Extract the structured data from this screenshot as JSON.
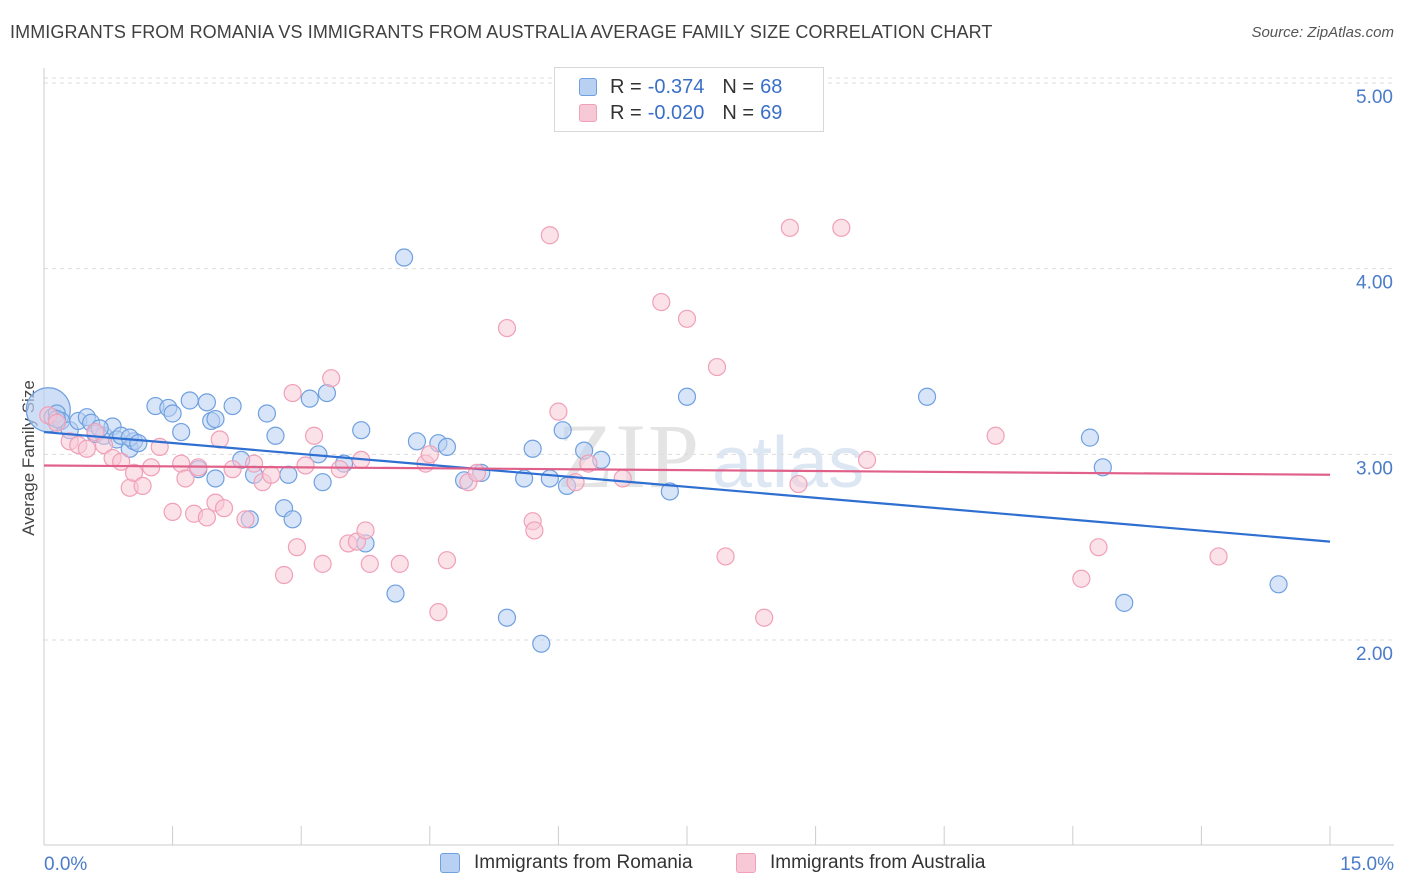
{
  "title": "IMMIGRANTS FROM ROMANIA VS IMMIGRANTS FROM AUSTRALIA AVERAGE FAMILY SIZE CORRELATION CHART",
  "source": "Source: ZipAtlas.com",
  "watermark": {
    "zip": "ZIP",
    "atlas": "atlas"
  },
  "legend": {
    "r_label": "R =",
    "n_label": "N =",
    "rows": [
      {
        "r": "-0.374",
        "n": "68",
        "color": "#6fa0e0"
      },
      {
        "r": "-0.020",
        "n": "69",
        "color": "#f0a0b8"
      }
    ]
  },
  "chart_data": {
    "type": "scatter",
    "xlabel": "",
    "ylabel": "Average Family Size",
    "xlim": [
      0,
      15
    ],
    "ylim": [
      1.0,
      5.1
    ],
    "x_tick_labels": [
      {
        "x": 0,
        "label": "0.0%"
      },
      {
        "x": 15,
        "label": "15.0%"
      }
    ],
    "y_ticks": [
      {
        "y": 5,
        "label": "5.00"
      },
      {
        "y": 4,
        "label": "4.00"
      },
      {
        "y": 3,
        "label": "3.00"
      },
      {
        "y": 2,
        "label": "2.00"
      }
    ],
    "grid": "horizontal dashed",
    "legend_position": "bottom",
    "series": [
      {
        "name": "Immigrants from Romania",
        "color": "#6fa0e0",
        "fill": "#b8d0f2",
        "line_color": "#2e6fd1",
        "trend": [
          [
            0,
            3.12
          ],
          [
            15,
            2.53
          ]
        ],
        "points": [
          [
            0.05,
            3.24
          ],
          [
            0.1,
            3.2
          ],
          [
            0.15,
            3.22
          ],
          [
            0.2,
            3.18
          ],
          [
            0.3,
            3.13
          ],
          [
            0.4,
            3.18
          ],
          [
            0.5,
            3.2
          ],
          [
            0.55,
            3.17
          ],
          [
            0.6,
            3.11
          ],
          [
            0.7,
            3.1
          ],
          [
            0.8,
            3.15
          ],
          [
            0.85,
            3.08
          ],
          [
            0.9,
            3.1
          ],
          [
            1.0,
            3.03
          ],
          [
            1.05,
            3.07
          ],
          [
            1.0,
            3.09
          ],
          [
            1.1,
            3.06
          ],
          [
            1.3,
            3.26
          ],
          [
            1.45,
            3.25
          ],
          [
            1.5,
            3.22
          ],
          [
            1.6,
            3.12
          ],
          [
            1.7,
            3.29
          ],
          [
            1.8,
            2.92
          ],
          [
            1.9,
            3.28
          ],
          [
            1.95,
            3.18
          ],
          [
            2.0,
            3.19
          ],
          [
            2.0,
            2.87
          ],
          [
            2.2,
            3.26
          ],
          [
            2.3,
            2.97
          ],
          [
            2.4,
            2.65
          ],
          [
            2.45,
            2.89
          ],
          [
            2.6,
            3.22
          ],
          [
            2.7,
            3.1
          ],
          [
            2.8,
            2.71
          ],
          [
            2.85,
            2.89
          ],
          [
            2.9,
            2.65
          ],
          [
            3.1,
            3.3
          ],
          [
            3.2,
            3.0
          ],
          [
            3.25,
            2.85
          ],
          [
            3.3,
            3.33
          ],
          [
            3.5,
            2.95
          ],
          [
            3.7,
            3.13
          ],
          [
            3.75,
            2.52
          ],
          [
            4.1,
            2.25
          ],
          [
            4.2,
            4.06
          ],
          [
            4.35,
            3.07
          ],
          [
            4.6,
            3.06
          ],
          [
            4.7,
            3.04
          ],
          [
            4.9,
            2.86
          ],
          [
            5.1,
            2.9
          ],
          [
            5.4,
            2.12
          ],
          [
            5.6,
            2.87
          ],
          [
            5.7,
            3.03
          ],
          [
            5.8,
            1.98
          ],
          [
            5.9,
            2.87
          ],
          [
            6.05,
            3.13
          ],
          [
            6.1,
            2.83
          ],
          [
            6.3,
            3.02
          ],
          [
            6.5,
            2.97
          ],
          [
            7.3,
            2.8
          ],
          [
            7.5,
            3.31
          ],
          [
            10.3,
            3.31
          ],
          [
            12.2,
            3.09
          ],
          [
            12.35,
            2.93
          ],
          [
            12.6,
            2.2
          ],
          [
            14.4,
            2.3
          ],
          [
            0.15,
            3.19
          ],
          [
            0.65,
            3.14
          ]
        ]
      },
      {
        "name": "Immigrants from Australia",
        "color": "#f0a0b8",
        "fill": "#f7c8d6",
        "line_color": "#e0608a",
        "trend": [
          [
            0,
            2.94
          ],
          [
            15,
            2.89
          ]
        ],
        "points": [
          [
            0.05,
            3.21
          ],
          [
            0.15,
            3.17
          ],
          [
            0.3,
            3.07
          ],
          [
            0.4,
            3.05
          ],
          [
            0.5,
            3.03
          ],
          [
            0.6,
            3.12
          ],
          [
            0.7,
            3.05
          ],
          [
            0.8,
            2.98
          ],
          [
            0.9,
            2.96
          ],
          [
            1.0,
            2.82
          ],
          [
            1.05,
            2.9
          ],
          [
            1.15,
            2.83
          ],
          [
            1.25,
            2.93
          ],
          [
            1.35,
            3.04
          ],
          [
            1.5,
            2.69
          ],
          [
            1.6,
            2.95
          ],
          [
            1.65,
            2.87
          ],
          [
            1.75,
            2.68
          ],
          [
            1.8,
            2.93
          ],
          [
            1.9,
            2.66
          ],
          [
            2.0,
            2.74
          ],
          [
            2.05,
            3.08
          ],
          [
            2.1,
            2.71
          ],
          [
            2.2,
            2.92
          ],
          [
            2.35,
            2.65
          ],
          [
            2.45,
            2.95
          ],
          [
            2.55,
            2.85
          ],
          [
            2.65,
            2.89
          ],
          [
            2.8,
            2.35
          ],
          [
            2.9,
            3.33
          ],
          [
            2.95,
            2.5
          ],
          [
            3.05,
            2.94
          ],
          [
            3.15,
            3.1
          ],
          [
            3.25,
            2.41
          ],
          [
            3.35,
            3.41
          ],
          [
            3.45,
            2.92
          ],
          [
            3.55,
            2.52
          ],
          [
            3.65,
            2.53
          ],
          [
            3.7,
            2.97
          ],
          [
            3.75,
            2.59
          ],
          [
            3.8,
            2.41
          ],
          [
            4.15,
            2.41
          ],
          [
            4.45,
            2.95
          ],
          [
            4.5,
            3.0
          ],
          [
            4.6,
            2.15
          ],
          [
            4.7,
            2.43
          ],
          [
            4.95,
            2.85
          ],
          [
            5.05,
            2.9
          ],
          [
            5.4,
            3.68
          ],
          [
            5.7,
            2.64
          ],
          [
            5.72,
            2.59
          ],
          [
            5.9,
            4.18
          ],
          [
            6.0,
            3.23
          ],
          [
            6.2,
            2.85
          ],
          [
            6.35,
            2.95
          ],
          [
            6.75,
            2.87
          ],
          [
            7.2,
            3.82
          ],
          [
            7.5,
            3.73
          ],
          [
            7.85,
            3.47
          ],
          [
            7.95,
            2.45
          ],
          [
            8.4,
            2.12
          ],
          [
            8.7,
            4.22
          ],
          [
            8.8,
            2.84
          ],
          [
            9.3,
            4.22
          ],
          [
            9.6,
            2.97
          ],
          [
            11.1,
            3.1
          ],
          [
            12.1,
            2.33
          ],
          [
            12.3,
            2.5
          ],
          [
            13.7,
            2.45
          ]
        ]
      }
    ]
  },
  "bottom_legend": [
    {
      "label": "Immigrants from Romania",
      "color": "#6fa0e0",
      "fill": "#b8d0f2"
    },
    {
      "label": "Immigrants from Australia",
      "color": "#f0a0b8",
      "fill": "#f7c8d6"
    }
  ]
}
